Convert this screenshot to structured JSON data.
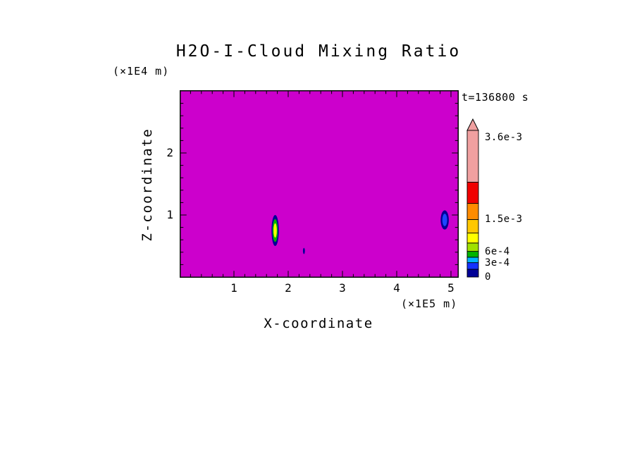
{
  "chart_data": {
    "type": "heatmap",
    "title": "H2O-I-Cloud Mixing Ratio",
    "time_label": "t=136800 s",
    "xlabel": "X-coordinate",
    "x_unit": "(×1E5 m)",
    "x_ticks": [
      1,
      2,
      3,
      4,
      5
    ],
    "x_minor_tick_step": 0.2,
    "x_range": [
      0,
      5.14
    ],
    "ylabel": "Z-coordinate",
    "y_unit": "(×1E4 m)",
    "y_ticks": [
      1,
      2
    ],
    "y_minor_tick_step": 0.2,
    "y_range": [
      0,
      3.02
    ],
    "background_value": 0,
    "background_color": "#cc00cc",
    "colorbar": {
      "boundaries": [
        0,
        0.053,
        0.098,
        0.135,
        0.175,
        0.232,
        0.3,
        0.392,
        0.502,
        0.647,
        1.0
      ],
      "colors": [
        "#000096",
        "#1432ff",
        "#00b4ff",
        "#00b400",
        "#a0e100",
        "#ffff00",
        "#ffc800",
        "#ff8c00",
        "#f00000",
        "#f0a0a0"
      ],
      "arrow_color": "#f0a0a0",
      "labels": [
        {
          "text": "3.6e-3",
          "value": 0.0036,
          "pos": 0.95
        },
        {
          "text": "1.5e-3",
          "value": 0.0015,
          "pos": 0.392
        },
        {
          "text": "6e-4",
          "value": 0.0006,
          "pos": 0.175
        },
        {
          "text": "3e-4",
          "value": 0.0003,
          "pos": 0.098
        },
        {
          "text": "0",
          "value": 0,
          "pos": 0
        }
      ]
    },
    "features": [
      {
        "name": "cloud-plume-left",
        "x": 1.76,
        "z": 0.75,
        "parts": [
          {
            "shape": "ellipse",
            "rx": 0.068,
            "rz": 0.25,
            "fill": "#000096"
          },
          {
            "shape": "ellipse",
            "rx": 0.048,
            "rz": 0.185,
            "fill": "#00b400"
          },
          {
            "shape": "ellipse",
            "rx": 0.03,
            "rz": 0.115,
            "fill": "#ffff00"
          }
        ]
      },
      {
        "name": "cloud-patch-right",
        "x": 4.885,
        "z": 0.92,
        "parts": [
          {
            "shape": "ellipse",
            "rx": 0.075,
            "rz": 0.155,
            "fill": "#000096"
          },
          {
            "shape": "ellipse",
            "rx": 0.045,
            "rz": 0.1,
            "fill": "#1e46ff"
          }
        ]
      },
      {
        "name": "cloud-speck",
        "x": 2.29,
        "z": 0.42,
        "parts": [
          {
            "shape": "ellipse",
            "rx": 0.018,
            "rz": 0.05,
            "fill": "#000096"
          }
        ]
      }
    ]
  }
}
